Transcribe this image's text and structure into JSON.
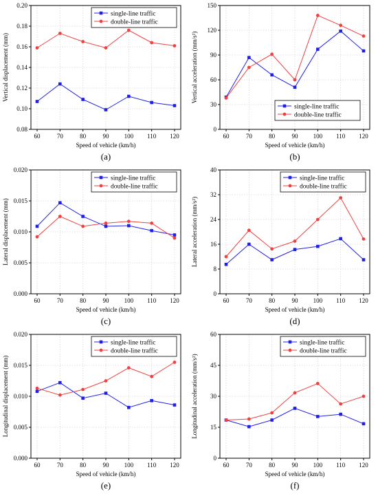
{
  "colors": {
    "single": "#1f1fe8",
    "double": "#f04040",
    "axis": "#000000",
    "grid": "#d8d8d8"
  },
  "chart_data": [
    {
      "type": "line",
      "panel_label": "(a)",
      "categories": [
        "60",
        "70",
        "80",
        "90",
        "100",
        "110",
        "120"
      ],
      "xlabel": "Speed of vehicle (km/h)",
      "ylabel": "Vertical displacement (mm)",
      "ylim": [
        0.08,
        0.2
      ],
      "yticks": [
        "0.08",
        "0.10",
        "0.12",
        "0.14",
        "0.16",
        "0.18",
        "0.20"
      ],
      "grid": true,
      "legend_position": "top-right",
      "series": [
        {
          "name": "single-line traffic",
          "marker": "square",
          "values": [
            0.107,
            0.124,
            0.109,
            0.099,
            0.112,
            0.106,
            0.103
          ]
        },
        {
          "name": "double-line traffic",
          "marker": "circle",
          "values": [
            0.159,
            0.173,
            0.165,
            0.159,
            0.176,
            0.164,
            0.161
          ]
        }
      ]
    },
    {
      "type": "line",
      "panel_label": "(b)",
      "categories": [
        "60",
        "70",
        "80",
        "90",
        "100",
        "110",
        "120"
      ],
      "xlabel": "Speed of vehicle (km/h)",
      "ylabel": "Vertical acceleration (mm/s²)",
      "ylim": [
        0,
        150
      ],
      "yticks": [
        "0",
        "30",
        "60",
        "90",
        "120",
        "150"
      ],
      "grid": true,
      "legend_position": "bottom-right",
      "series": [
        {
          "name": "single-line traffic",
          "marker": "square",
          "values": [
            39,
            87,
            66,
            51,
            97,
            119,
            95
          ]
        },
        {
          "name": "double-line traffic",
          "marker": "circle",
          "values": [
            38,
            75,
            91,
            60,
            138,
            126,
            113
          ]
        }
      ]
    },
    {
      "type": "line",
      "panel_label": "(c)",
      "categories": [
        "60",
        "70",
        "80",
        "90",
        "100",
        "110",
        "120"
      ],
      "xlabel": "Speed of vehicle (km/h)",
      "ylabel": "Lateral displacement (mm)",
      "ylim": [
        0,
        0.02
      ],
      "yticks": [
        "0.000",
        "0.005",
        "0.010",
        "0.015",
        "0.020"
      ],
      "grid": true,
      "legend_position": "top-right",
      "series": [
        {
          "name": "single-line traffic",
          "marker": "square",
          "values": [
            0.0109,
            0.0147,
            0.0125,
            0.0109,
            0.011,
            0.0102,
            0.0095
          ]
        },
        {
          "name": "double-line traffic",
          "marker": "circle",
          "values": [
            0.0092,
            0.0125,
            0.0109,
            0.0114,
            0.0117,
            0.0114,
            0.009
          ]
        }
      ]
    },
    {
      "type": "line",
      "panel_label": "(d)",
      "categories": [
        "60",
        "70",
        "80",
        "90",
        "100",
        "110",
        "120"
      ],
      "xlabel": "Speed of vehicle (km/h)",
      "ylabel": "Lateral acceleration (mm/s²)",
      "ylim": [
        0,
        40
      ],
      "yticks": [
        "0",
        "8",
        "16",
        "24",
        "32",
        "40"
      ],
      "grid": true,
      "legend_position": "top-right",
      "series": [
        {
          "name": "single-line traffic",
          "marker": "square",
          "values": [
            9.5,
            16,
            11,
            14.3,
            15.3,
            17.8,
            11
          ]
        },
        {
          "name": "double-line traffic",
          "marker": "circle",
          "values": [
            12,
            20.5,
            14.5,
            17,
            24,
            31,
            17.7
          ]
        }
      ]
    },
    {
      "type": "line",
      "panel_label": "(e)",
      "categories": [
        "60",
        "70",
        "80",
        "90",
        "100",
        "110",
        "120"
      ],
      "xlabel": "Speed of vehicle (km/h)",
      "ylabel": "Longitudinal displacement (mm)",
      "ylim": [
        0,
        0.02
      ],
      "yticks": [
        "0.000",
        "0.005",
        "0.010",
        "0.015",
        "0.020"
      ],
      "grid": true,
      "legend_position": "top-right",
      "series": [
        {
          "name": "single-line traffic",
          "marker": "square",
          "values": [
            0.0108,
            0.0122,
            0.0097,
            0.0105,
            0.0082,
            0.0093,
            0.0086
          ]
        },
        {
          "name": "double-line traffic",
          "marker": "circle",
          "values": [
            0.0113,
            0.0102,
            0.0111,
            0.0125,
            0.0146,
            0.0132,
            0.0155
          ]
        }
      ]
    },
    {
      "type": "line",
      "panel_label": "(f)",
      "categories": [
        "60",
        "70",
        "80",
        "90",
        "100",
        "110",
        "120"
      ],
      "xlabel": "Speed of vehicle (km/h)",
      "ylabel": "Longitudinal acceleration (mm/s²)",
      "ylim": [
        0,
        60
      ],
      "yticks": [
        "0",
        "15",
        "30",
        "45",
        "60"
      ],
      "grid": true,
      "legend_position": "top-right",
      "series": [
        {
          "name": "single-line traffic",
          "marker": "square",
          "values": [
            18.5,
            15.3,
            18.5,
            24.2,
            20.2,
            21.3,
            16.7
          ]
        },
        {
          "name": "double-line traffic",
          "marker": "circle",
          "values": [
            18.5,
            19,
            22,
            31.7,
            36.2,
            26.3,
            30
          ]
        }
      ]
    }
  ]
}
